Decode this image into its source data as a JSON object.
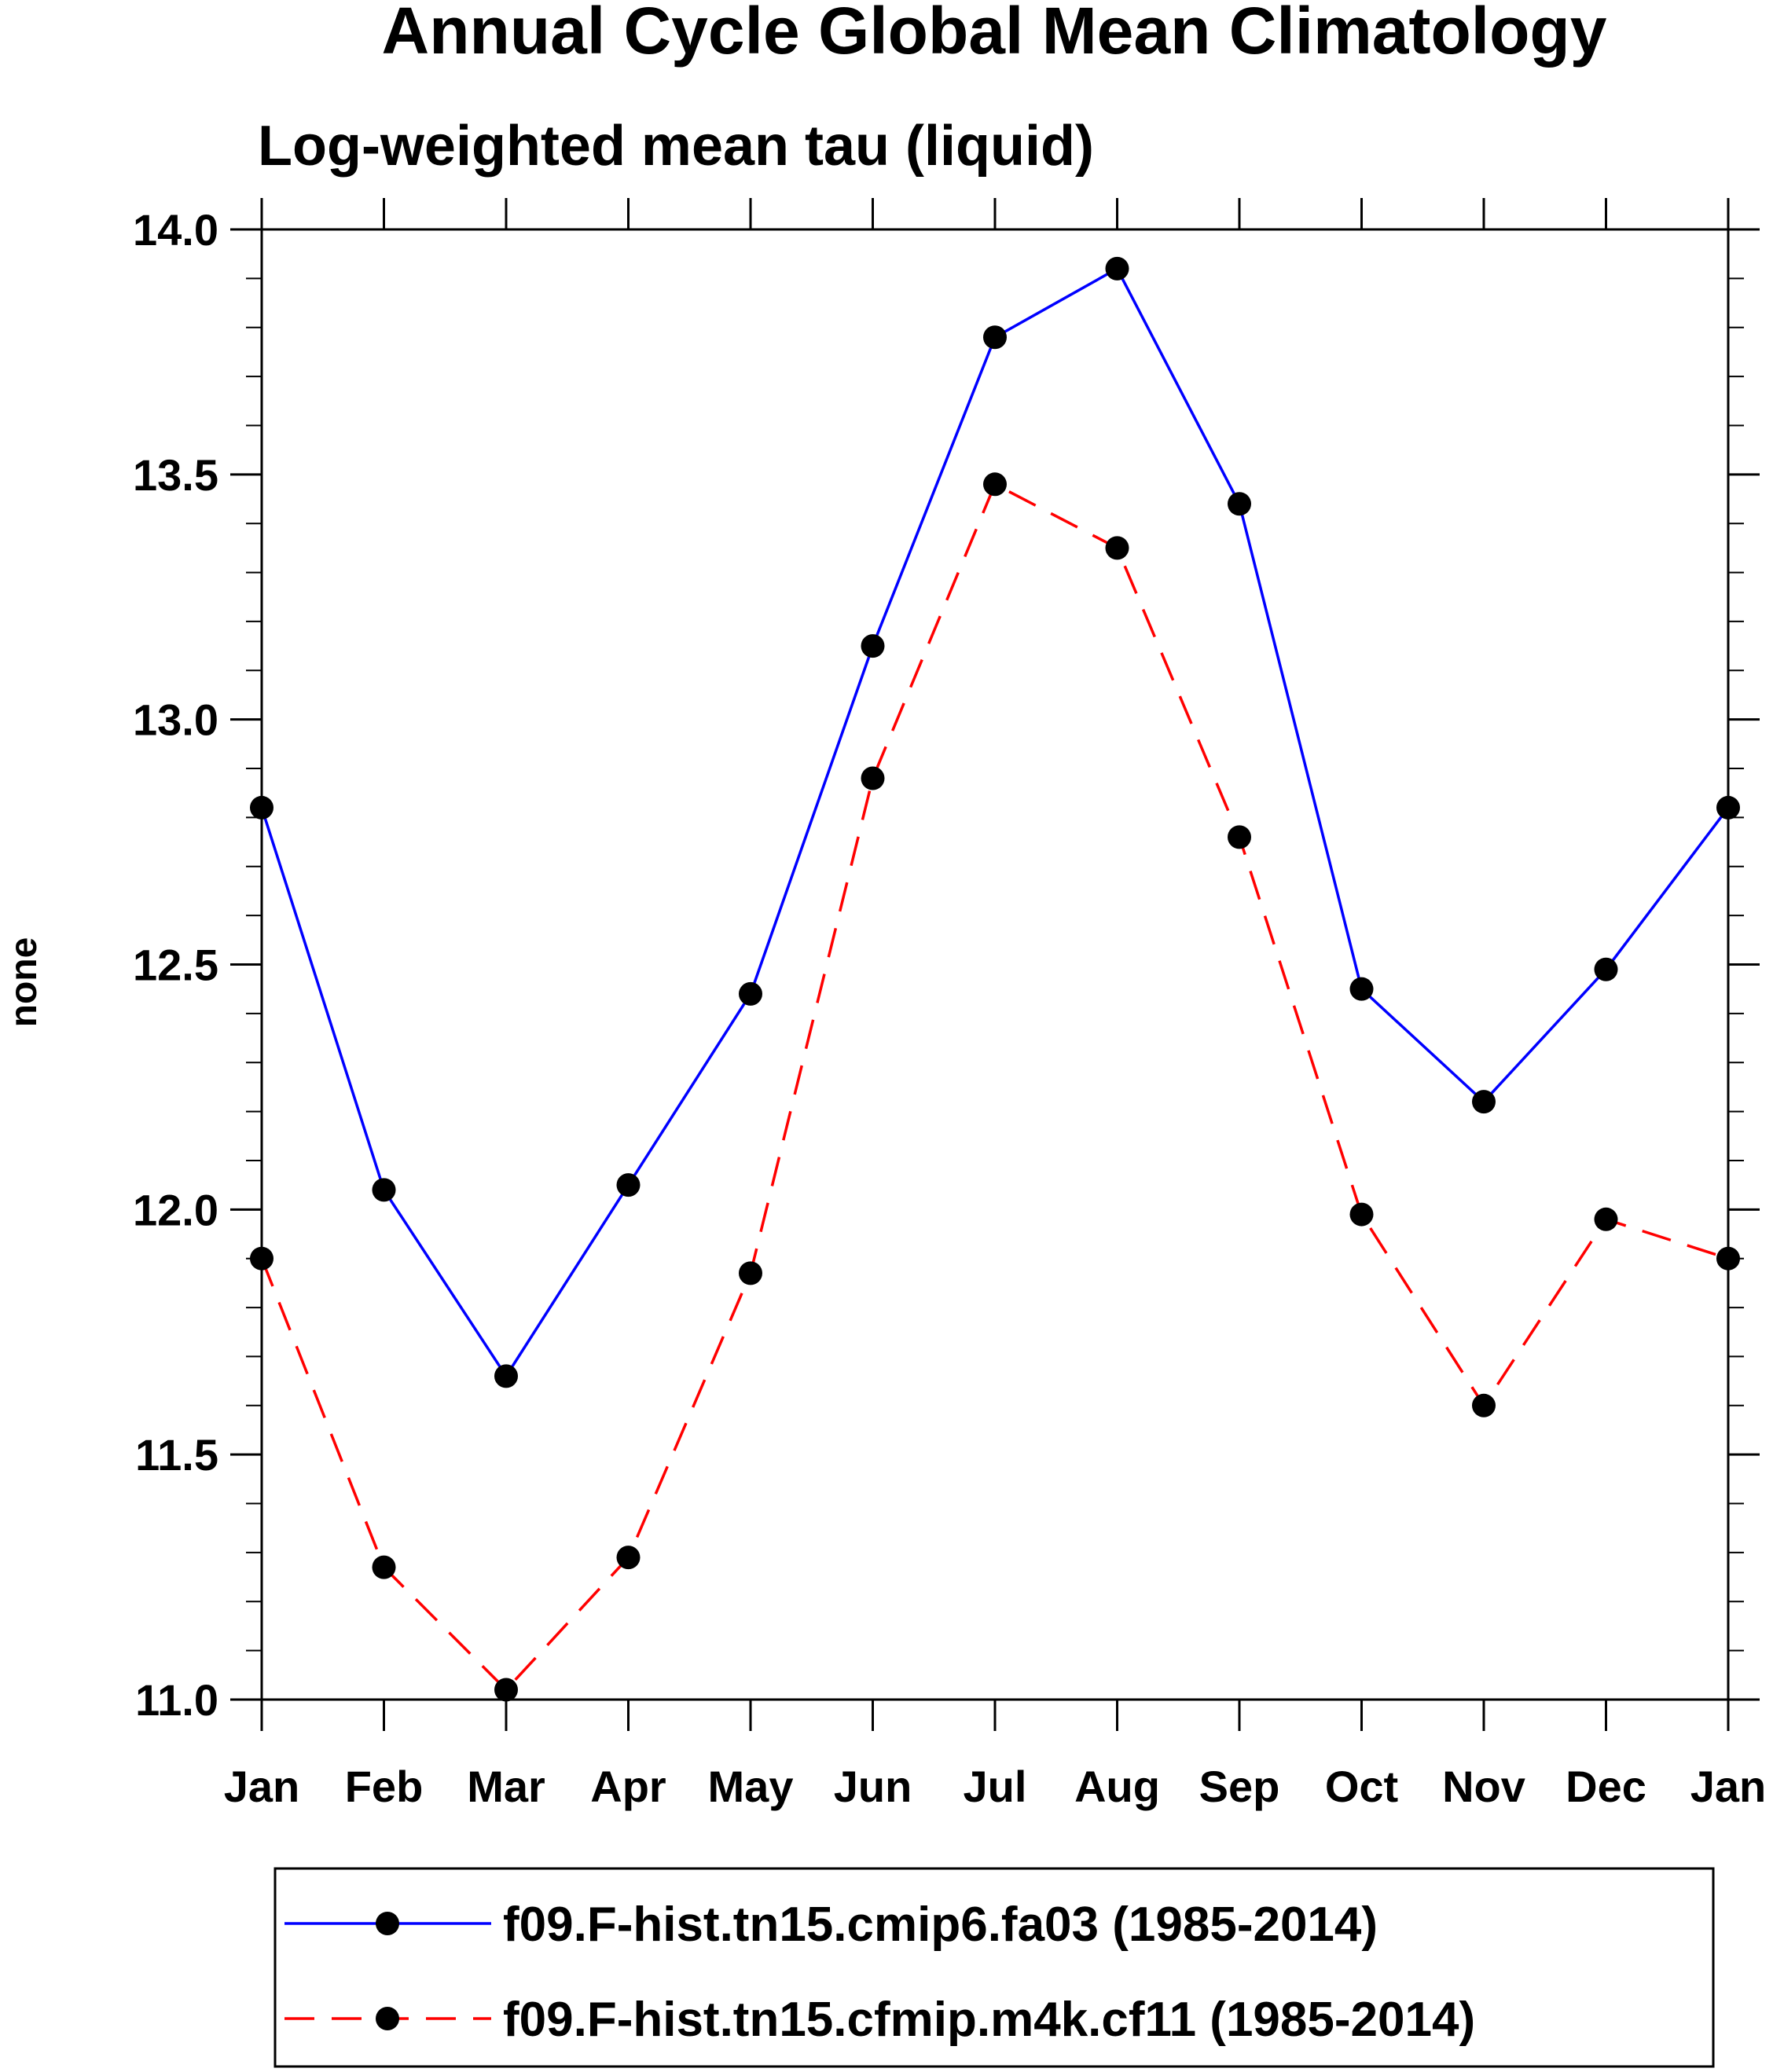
{
  "chart_data": {
    "type": "line",
    "title": "Annual Cycle Global Mean Climatology",
    "subtitle": "Log-weighted mean tau (liquid)",
    "xlabel": "",
    "ylabel": "none",
    "categories": [
      "Jan",
      "Feb",
      "Mar",
      "Apr",
      "May",
      "Jun",
      "Jul",
      "Aug",
      "Sep",
      "Oct",
      "Nov",
      "Dec",
      "Jan"
    ],
    "ylim": [
      11.0,
      14.0
    ],
    "yticks": [
      11.0,
      11.5,
      12.0,
      12.5,
      13.0,
      13.5,
      14.0
    ],
    "ytick_labels": [
      "11.0",
      "11.5",
      "12.0",
      "12.5",
      "13.0",
      "13.5",
      "14.0"
    ],
    "y_minor_step": 0.1,
    "grid": false,
    "legend_position": "bottom",
    "series": [
      {
        "name": "f09.F-hist.tn15.cmip6.fa03 (1985-2014)",
        "color": "#0000ff",
        "dash": "solid",
        "marker": "filled-circle",
        "values": [
          12.82,
          12.04,
          11.66,
          12.05,
          12.44,
          13.15,
          13.78,
          13.92,
          13.44,
          12.45,
          12.22,
          12.49,
          12.82
        ]
      },
      {
        "name": "f09.F-hist.tn15.cfmip.m4k.cf11 (1985-2014)",
        "color": "#ff0000",
        "dash": "dashed",
        "marker": "filled-circle",
        "values": [
          11.9,
          11.27,
          11.02,
          11.29,
          11.87,
          12.88,
          13.48,
          13.35,
          12.76,
          11.99,
          11.6,
          11.98,
          11.9
        ]
      }
    ]
  }
}
